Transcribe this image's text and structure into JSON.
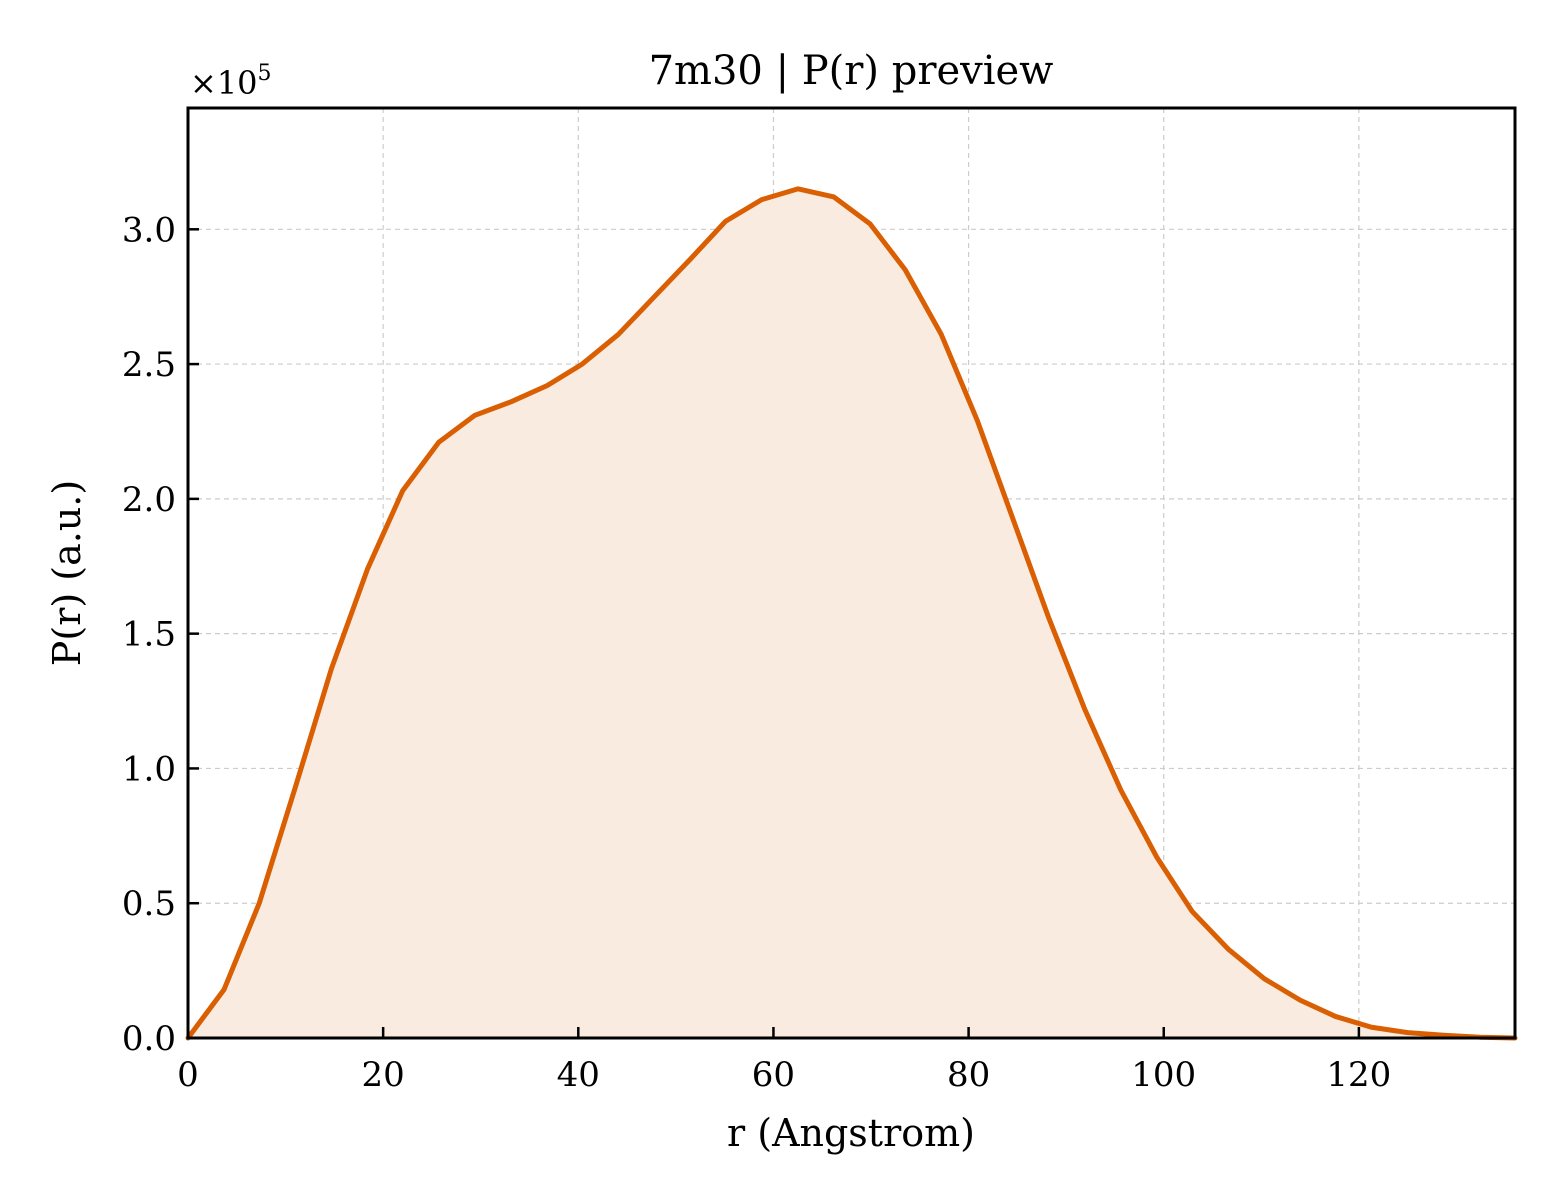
{
  "chart_data": {
    "type": "area",
    "title": "7m30 | P(r) preview",
    "xlabel": "r (Angstrom)",
    "ylabel": "P(r) (a.u.)",
    "y_multiplier_base": "×10",
    "y_multiplier_exp": "5",
    "xlim": [
      0,
      136
    ],
    "ylim": [
      0,
      3.45
    ],
    "grid": true,
    "line_color": "#d95f02",
    "fill_color": "#f9ebe0",
    "x_ticks": [
      0,
      20,
      40,
      60,
      80,
      100,
      120
    ],
    "x_tick_labels": [
      "0",
      "20",
      "40",
      "60",
      "80",
      "100",
      "120"
    ],
    "y_ticks": [
      0,
      0.5,
      1.0,
      1.5,
      2.0,
      2.5,
      3.0
    ],
    "y_tick_labels": [
      "0.0",
      "0.5",
      "1.0",
      "1.5",
      "2.0",
      "2.5",
      "3.0"
    ],
    "series": [
      {
        "x": [
          0,
          3.7,
          7.3,
          11.0,
          14.7,
          18.4,
          22.0,
          25.7,
          29.4,
          33.1,
          36.8,
          40.4,
          44.1,
          47.8,
          51.5,
          55.1,
          58.8,
          62.5,
          66.2,
          69.9,
          73.5,
          77.2,
          80.9,
          84.6,
          88.2,
          91.9,
          95.6,
          99.3,
          102.9,
          106.6,
          110.3,
          114.0,
          117.6,
          121.3,
          125.0,
          128.7,
          132.4,
          136.0
        ],
        "y": [
          0.0,
          0.18,
          0.5,
          0.93,
          1.37,
          1.74,
          2.03,
          2.21,
          2.31,
          2.36,
          2.42,
          2.5,
          2.61,
          2.75,
          2.89,
          3.03,
          3.11,
          3.15,
          3.12,
          3.02,
          2.85,
          2.61,
          2.29,
          1.92,
          1.56,
          1.22,
          0.92,
          0.67,
          0.47,
          0.33,
          0.22,
          0.14,
          0.08,
          0.04,
          0.02,
          0.01,
          0.003,
          0.0
        ]
      }
    ]
  }
}
